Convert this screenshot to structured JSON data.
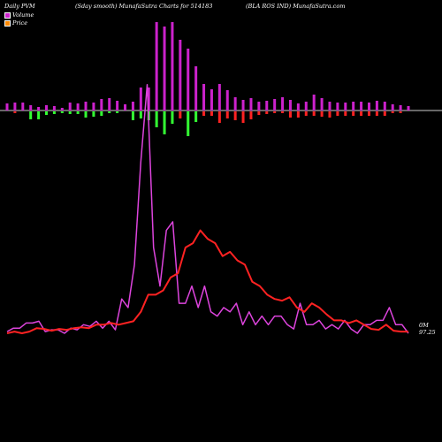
{
  "header": {
    "left": "Daily PVM",
    "mid1": "(Sday smooth) MunafaSutra Charts for 514183",
    "mid2": "(BLA ROS IND) MunafaSutra.com"
  },
  "legend": {
    "volume": "Volume",
    "price": "Price"
  },
  "colors": {
    "background": "#000000",
    "volume_positive": "#cc22cc",
    "volume_negative_green": "#33ff33",
    "volume_negative_red": "#ff2222",
    "price_line": "#dd44dd",
    "smooth_line": "#ff2222",
    "baseline": "#cccccc"
  },
  "end_label": {
    "line1": "0M",
    "line2": "97.25"
  },
  "chart_data": {
    "type": "line",
    "title": "",
    "volume_bars": {
      "up": [
        8,
        9,
        9,
        6,
        4,
        6,
        5,
        3,
        9,
        8,
        10,
        9,
        13,
        14,
        11,
        7,
        10,
        26,
        26,
        100,
        95,
        100,
        80,
        70,
        50,
        30,
        24,
        30,
        23,
        15,
        12,
        14,
        10,
        11,
        13,
        15,
        12,
        8,
        10,
        18,
        14,
        10,
        9,
        9,
        10,
        10,
        9,
        11,
        10,
        7,
        6,
        5
      ],
      "down": [
        0,
        2,
        0,
        9,
        9,
        4,
        3,
        2,
        3,
        3,
        7,
        6,
        5,
        2,
        2,
        0,
        10,
        8,
        10,
        18,
        26,
        14,
        8,
        28,
        12,
        5,
        5,
        13,
        8,
        10,
        13,
        9,
        4,
        3,
        2,
        2,
        7,
        7,
        5,
        5,
        6,
        7,
        5,
        5,
        5,
        5,
        5,
        5,
        5,
        2,
        2,
        0
      ],
      "down_color": [
        "red",
        "red",
        "red",
        "green",
        "green",
        "green",
        "green",
        "green",
        "green",
        "green",
        "green",
        "green",
        "green",
        "green",
        "green",
        "red",
        "green",
        "green",
        "green",
        "green",
        "green",
        "green",
        "red",
        "green",
        "green",
        "red",
        "red",
        "red",
        "red",
        "red",
        "red",
        "red",
        "red",
        "red",
        "red",
        "red",
        "red",
        "red",
        "red",
        "red",
        "red",
        "red",
        "red",
        "red",
        "red",
        "red",
        "red",
        "red",
        "red",
        "red",
        "red",
        "red"
      ]
    },
    "price": [
      2,
      6,
      6,
      12,
      12,
      14,
      2,
      4,
      4,
      0,
      6,
      4,
      10,
      8,
      14,
      6,
      14,
      4,
      40,
      30,
      80,
      200,
      290,
      100,
      55,
      120,
      130,
      35,
      35,
      55,
      30,
      55,
      25,
      20,
      30,
      25,
      35,
      10,
      25,
      10,
      20,
      10,
      20,
      20,
      10,
      5,
      35,
      10,
      10,
      15,
      5,
      10,
      5,
      15,
      5,
      0,
      10,
      10,
      15,
      15,
      30,
      10,
      10,
      0
    ],
    "smooth": [
      0,
      2,
      0,
      2,
      6,
      5,
      3,
      5,
      4,
      6,
      7,
      6,
      10,
      10,
      12,
      10,
      12,
      14,
      25,
      45,
      45,
      50,
      65,
      70,
      100,
      105,
      120,
      110,
      105,
      90,
      95,
      85,
      80,
      60,
      55,
      45,
      40,
      38,
      42,
      30,
      25,
      35,
      30,
      22,
      15,
      15,
      12,
      15,
      10,
      5,
      4,
      10,
      3,
      2,
      2
    ]
  }
}
